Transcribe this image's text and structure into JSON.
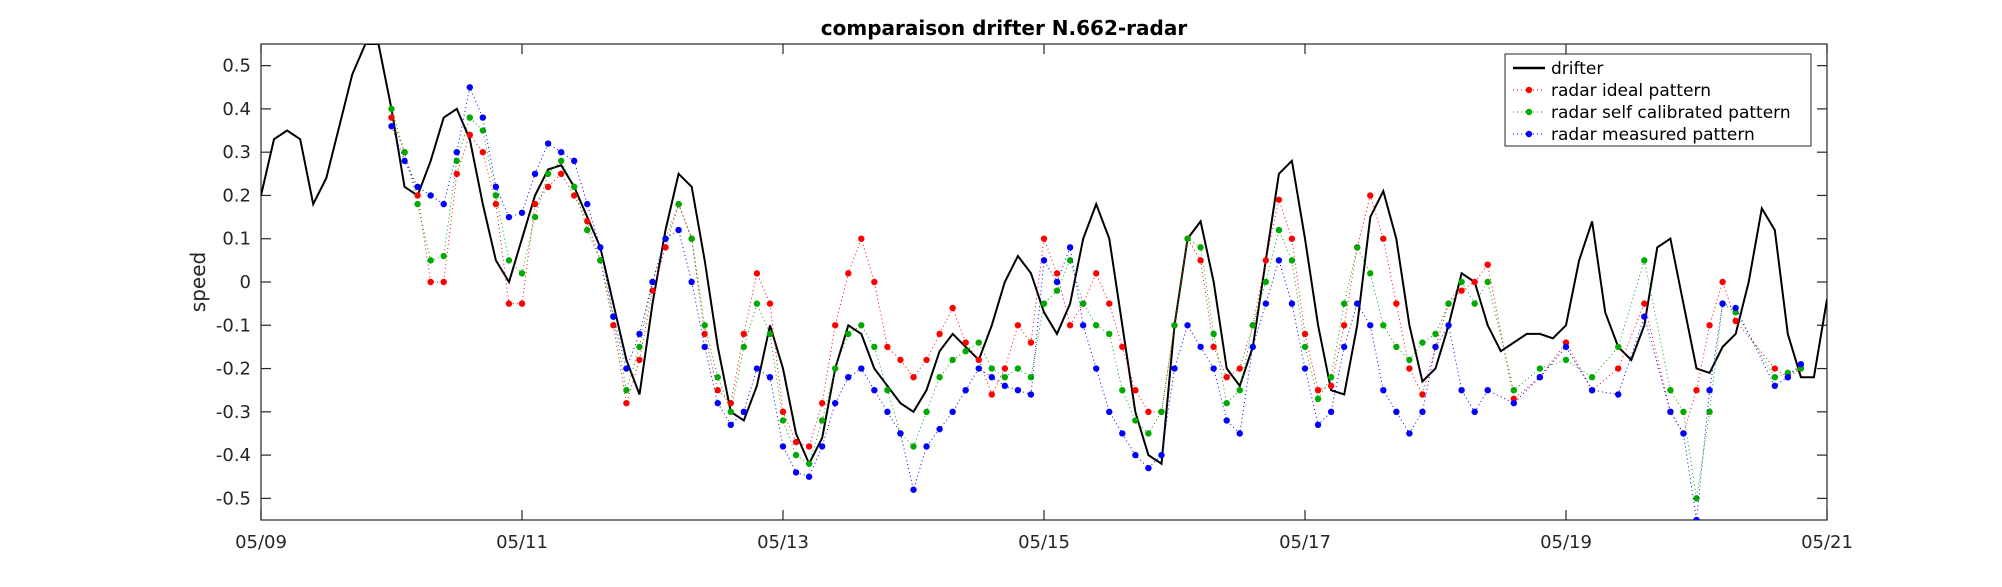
{
  "chart_data": {
    "type": "line",
    "title": "comparaison drifter N.662-radar",
    "xlabel": "",
    "ylabel": "speed",
    "xlim": [
      "05/09",
      "05/21"
    ],
    "ylim": [
      -0.55,
      0.55
    ],
    "x_ticks": [
      "05/09",
      "05/11",
      "05/13",
      "05/15",
      "05/17",
      "05/19",
      "05/21"
    ],
    "y_ticks": [
      "0.5",
      "0.4",
      "0.3",
      "0.2",
      "0.1",
      "0",
      "-0.1",
      "-0.2",
      "-0.3",
      "-0.4",
      "-0.5"
    ],
    "grid": false,
    "legend_position": "top-right",
    "x_unit": "day of May",
    "series": [
      {
        "name": "drifter",
        "style": "solid line",
        "color": "#000000",
        "x": [
          9.0,
          9.1,
          9.2,
          9.3,
          9.4,
          9.5,
          9.6,
          9.7,
          9.8,
          9.9,
          10.0,
          10.1,
          10.2,
          10.3,
          10.4,
          10.5,
          10.6,
          10.7,
          10.8,
          10.9,
          11.0,
          11.1,
          11.2,
          11.3,
          11.4,
          11.5,
          11.6,
          11.7,
          11.8,
          11.9,
          12.0,
          12.1,
          12.2,
          12.3,
          12.4,
          12.5,
          12.6,
          12.7,
          12.8,
          12.9,
          13.0,
          13.1,
          13.2,
          13.3,
          13.4,
          13.5,
          13.6,
          13.7,
          13.8,
          13.9,
          14.0,
          14.1,
          14.2,
          14.3,
          14.4,
          14.5,
          14.6,
          14.7,
          14.8,
          14.9,
          15.0,
          15.1,
          15.2,
          15.3,
          15.4,
          15.5,
          15.6,
          15.7,
          15.8,
          15.9,
          16.0,
          16.1,
          16.2,
          16.3,
          16.4,
          16.5,
          16.6,
          16.7,
          16.8,
          16.9,
          17.0,
          17.1,
          17.2,
          17.3,
          17.4,
          17.5,
          17.6,
          17.7,
          17.8,
          17.9,
          18.0,
          18.1,
          18.2,
          18.3,
          18.4,
          18.5,
          18.6,
          18.7,
          18.8,
          18.9,
          19.0,
          19.1,
          19.2,
          19.3,
          19.4,
          19.5,
          19.6,
          19.7,
          19.8,
          19.9,
          20.0,
          20.1,
          20.2,
          20.3,
          20.4,
          20.5,
          20.6,
          20.7,
          20.8,
          20.9,
          21.0
        ],
        "y": [
          0.2,
          0.33,
          0.35,
          0.33,
          0.18,
          0.24,
          0.36,
          0.48,
          0.55,
          0.55,
          0.4,
          0.22,
          0.2,
          0.28,
          0.38,
          0.4,
          0.33,
          0.18,
          0.05,
          0.0,
          0.1,
          0.2,
          0.26,
          0.27,
          0.22,
          0.15,
          0.08,
          -0.05,
          -0.18,
          -0.26,
          -0.05,
          0.12,
          0.25,
          0.22,
          0.05,
          -0.15,
          -0.3,
          -0.32,
          -0.24,
          -0.1,
          -0.2,
          -0.35,
          -0.42,
          -0.36,
          -0.2,
          -0.1,
          -0.12,
          -0.2,
          -0.24,
          -0.28,
          -0.3,
          -0.25,
          -0.16,
          -0.12,
          -0.15,
          -0.18,
          -0.1,
          0.0,
          0.06,
          0.02,
          -0.07,
          -0.12,
          -0.05,
          0.1,
          0.18,
          0.1,
          -0.1,
          -0.3,
          -0.4,
          -0.42,
          -0.1,
          0.1,
          0.14,
          0.0,
          -0.2,
          -0.24,
          -0.15,
          0.05,
          0.25,
          0.28,
          0.1,
          -0.1,
          -0.25,
          -0.26,
          -0.1,
          0.15,
          0.21,
          0.1,
          -0.1,
          -0.23,
          -0.2,
          -0.1,
          0.02,
          0.0,
          -0.1,
          -0.16,
          -0.14,
          -0.12,
          -0.12,
          -0.13,
          -0.1,
          0.05,
          0.14,
          -0.07,
          -0.15,
          -0.18,
          -0.1,
          0.08,
          0.1,
          -0.05,
          -0.2,
          -0.21,
          -0.15,
          -0.12,
          0.0,
          0.17,
          0.12,
          -0.12,
          -0.22,
          -0.22,
          -0.04
        ]
      },
      {
        "name": "radar ideal pattern",
        "style": "dotted line with point markers",
        "color": "#ff0000",
        "x": [
          10.0,
          10.1,
          10.2,
          10.3,
          10.4,
          10.5,
          10.6,
          10.7,
          10.8,
          10.9,
          11.0,
          11.1,
          11.2,
          11.3,
          11.4,
          11.5,
          11.6,
          11.7,
          11.8,
          11.9,
          12.0,
          12.1,
          12.2,
          12.3,
          12.4,
          12.5,
          12.6,
          12.7,
          12.8,
          12.9,
          13.0,
          13.1,
          13.2,
          13.3,
          13.4,
          13.5,
          13.6,
          13.7,
          13.8,
          13.9,
          14.0,
          14.1,
          14.2,
          14.3,
          14.4,
          14.5,
          14.6,
          14.7,
          14.8,
          14.9,
          15.0,
          15.1,
          15.2,
          15.3,
          15.4,
          15.5,
          15.6,
          15.7,
          15.8,
          15.9,
          16.0,
          16.1,
          16.2,
          16.3,
          16.4,
          16.5,
          16.6,
          16.7,
          16.8,
          16.9,
          17.0,
          17.1,
          17.2,
          17.3,
          17.4,
          17.5,
          17.6,
          17.7,
          17.8,
          17.9,
          18.0,
          18.1,
          18.2,
          18.3,
          18.4,
          18.6,
          18.8,
          19.0,
          19.2,
          19.4,
          19.6,
          19.8,
          19.9,
          20.0,
          20.1,
          20.2,
          20.3,
          20.6,
          20.7,
          20.8
        ],
        "y": [
          0.38,
          0.3,
          0.2,
          0.0,
          0.0,
          0.25,
          0.34,
          0.3,
          0.18,
          -0.05,
          -0.05,
          0.18,
          0.22,
          0.25,
          0.2,
          0.14,
          0.05,
          -0.1,
          -0.28,
          -0.18,
          -0.02,
          0.08,
          0.18,
          0.1,
          -0.12,
          -0.25,
          -0.28,
          -0.12,
          0.02,
          -0.05,
          -0.3,
          -0.37,
          -0.38,
          -0.28,
          -0.1,
          0.02,
          0.1,
          0.0,
          -0.15,
          -0.18,
          -0.22,
          -0.18,
          -0.12,
          -0.06,
          -0.14,
          -0.18,
          -0.26,
          -0.2,
          -0.1,
          -0.14,
          0.1,
          0.02,
          -0.1,
          -0.05,
          0.02,
          -0.05,
          -0.15,
          -0.25,
          -0.3,
          -0.3,
          -0.1,
          0.1,
          0.05,
          -0.15,
          -0.22,
          -0.2,
          -0.1,
          0.05,
          0.19,
          0.1,
          -0.12,
          -0.25,
          -0.24,
          -0.1,
          0.08,
          0.2,
          0.1,
          -0.05,
          -0.2,
          -0.26,
          -0.15,
          -0.05,
          -0.02,
          0.0,
          0.04,
          -0.27,
          -0.22,
          -0.14,
          -0.25,
          -0.2,
          -0.05,
          -0.3,
          -0.35,
          -0.25,
          -0.1,
          0.0,
          -0.09,
          -0.2,
          -0.22,
          -0.2
        ]
      },
      {
        "name": "radar self calibrated pattern",
        "style": "dotted line with point markers",
        "color": "#00aa00",
        "x": [
          10.0,
          10.1,
          10.2,
          10.3,
          10.4,
          10.5,
          10.6,
          10.7,
          10.8,
          10.9,
          11.0,
          11.1,
          11.2,
          11.3,
          11.4,
          11.5,
          11.6,
          11.7,
          11.8,
          11.9,
          12.0,
          12.1,
          12.2,
          12.3,
          12.4,
          12.5,
          12.6,
          12.7,
          12.8,
          12.9,
          13.0,
          13.1,
          13.2,
          13.3,
          13.4,
          13.5,
          13.6,
          13.7,
          13.8,
          13.9,
          14.0,
          14.1,
          14.2,
          14.3,
          14.4,
          14.5,
          14.6,
          14.7,
          14.8,
          14.9,
          15.0,
          15.1,
          15.2,
          15.3,
          15.4,
          15.5,
          15.6,
          15.7,
          15.8,
          15.9,
          16.0,
          16.1,
          16.2,
          16.3,
          16.4,
          16.5,
          16.6,
          16.7,
          16.8,
          16.9,
          17.0,
          17.1,
          17.2,
          17.3,
          17.4,
          17.5,
          17.6,
          17.7,
          17.8,
          17.9,
          18.0,
          18.1,
          18.2,
          18.3,
          18.4,
          18.6,
          18.8,
          19.0,
          19.2,
          19.4,
          19.6,
          19.8,
          19.9,
          20.0,
          20.1,
          20.2,
          20.3,
          20.6,
          20.7,
          20.8
        ],
        "y": [
          0.4,
          0.3,
          0.18,
          0.05,
          0.06,
          0.28,
          0.38,
          0.35,
          0.2,
          0.05,
          0.02,
          0.15,
          0.25,
          0.28,
          0.22,
          0.12,
          0.05,
          -0.08,
          -0.25,
          -0.15,
          0.0,
          0.1,
          0.18,
          0.1,
          -0.1,
          -0.22,
          -0.3,
          -0.15,
          -0.05,
          -0.12,
          -0.32,
          -0.4,
          -0.42,
          -0.32,
          -0.2,
          -0.12,
          -0.1,
          -0.15,
          -0.25,
          -0.35,
          -0.38,
          -0.3,
          -0.22,
          -0.18,
          -0.16,
          -0.14,
          -0.2,
          -0.22,
          -0.2,
          -0.22,
          -0.05,
          -0.02,
          0.05,
          -0.05,
          -0.1,
          -0.12,
          -0.25,
          -0.32,
          -0.35,
          -0.3,
          -0.1,
          0.1,
          0.08,
          -0.12,
          -0.28,
          -0.25,
          -0.1,
          0.0,
          0.12,
          0.05,
          -0.15,
          -0.27,
          -0.22,
          -0.05,
          0.08,
          0.02,
          -0.1,
          -0.15,
          -0.18,
          -0.14,
          -0.12,
          -0.05,
          0.0,
          -0.05,
          0.0,
          -0.25,
          -0.2,
          -0.18,
          -0.22,
          -0.15,
          0.05,
          -0.25,
          -0.3,
          -0.5,
          -0.3,
          -0.05,
          -0.07,
          -0.22,
          -0.21,
          -0.2
        ]
      },
      {
        "name": "radar measured pattern",
        "style": "dotted line with point markers",
        "color": "#0000ff",
        "x": [
          10.0,
          10.1,
          10.2,
          10.3,
          10.4,
          10.5,
          10.6,
          10.7,
          10.8,
          10.9,
          11.0,
          11.1,
          11.2,
          11.3,
          11.4,
          11.5,
          11.6,
          11.7,
          11.8,
          11.9,
          12.0,
          12.1,
          12.2,
          12.3,
          12.4,
          12.5,
          12.6,
          12.7,
          12.8,
          12.9,
          13.0,
          13.1,
          13.2,
          13.3,
          13.4,
          13.5,
          13.6,
          13.7,
          13.8,
          13.9,
          14.0,
          14.1,
          14.2,
          14.3,
          14.4,
          14.5,
          14.6,
          14.7,
          14.8,
          14.9,
          15.0,
          15.1,
          15.2,
          15.3,
          15.4,
          15.5,
          15.6,
          15.7,
          15.8,
          15.9,
          16.0,
          16.1,
          16.2,
          16.3,
          16.4,
          16.5,
          16.6,
          16.7,
          16.8,
          16.9,
          17.0,
          17.1,
          17.2,
          17.3,
          17.4,
          17.5,
          17.6,
          17.7,
          17.8,
          17.9,
          18.0,
          18.1,
          18.2,
          18.3,
          18.4,
          18.6,
          18.8,
          19.0,
          19.2,
          19.4,
          19.6,
          19.8,
          19.9,
          20.0,
          20.1,
          20.2,
          20.3,
          20.6,
          20.7,
          20.8
        ],
        "y": [
          0.36,
          0.28,
          0.22,
          0.2,
          0.18,
          0.3,
          0.45,
          0.38,
          0.22,
          0.15,
          0.16,
          0.25,
          0.32,
          0.3,
          0.28,
          0.18,
          0.08,
          -0.08,
          -0.2,
          -0.12,
          0.0,
          0.1,
          0.12,
          0.0,
          -0.15,
          -0.28,
          -0.33,
          -0.3,
          -0.2,
          -0.22,
          -0.38,
          -0.44,
          -0.45,
          -0.38,
          -0.28,
          -0.22,
          -0.2,
          -0.25,
          -0.3,
          -0.35,
          -0.48,
          -0.38,
          -0.34,
          -0.3,
          -0.25,
          -0.2,
          -0.22,
          -0.24,
          -0.25,
          -0.26,
          0.05,
          0.0,
          0.08,
          -0.1,
          -0.2,
          -0.3,
          -0.35,
          -0.4,
          -0.43,
          -0.4,
          -0.2,
          -0.1,
          -0.15,
          -0.2,
          -0.32,
          -0.35,
          -0.15,
          -0.05,
          0.05,
          -0.05,
          -0.2,
          -0.33,
          -0.3,
          -0.15,
          -0.05,
          -0.1,
          -0.25,
          -0.3,
          -0.35,
          -0.3,
          -0.15,
          -0.1,
          -0.25,
          -0.3,
          -0.25,
          -0.28,
          -0.22,
          -0.15,
          -0.25,
          -0.26,
          -0.08,
          -0.3,
          -0.35,
          -0.55,
          -0.25,
          -0.05,
          -0.06,
          -0.24,
          -0.22,
          -0.19
        ]
      }
    ]
  }
}
